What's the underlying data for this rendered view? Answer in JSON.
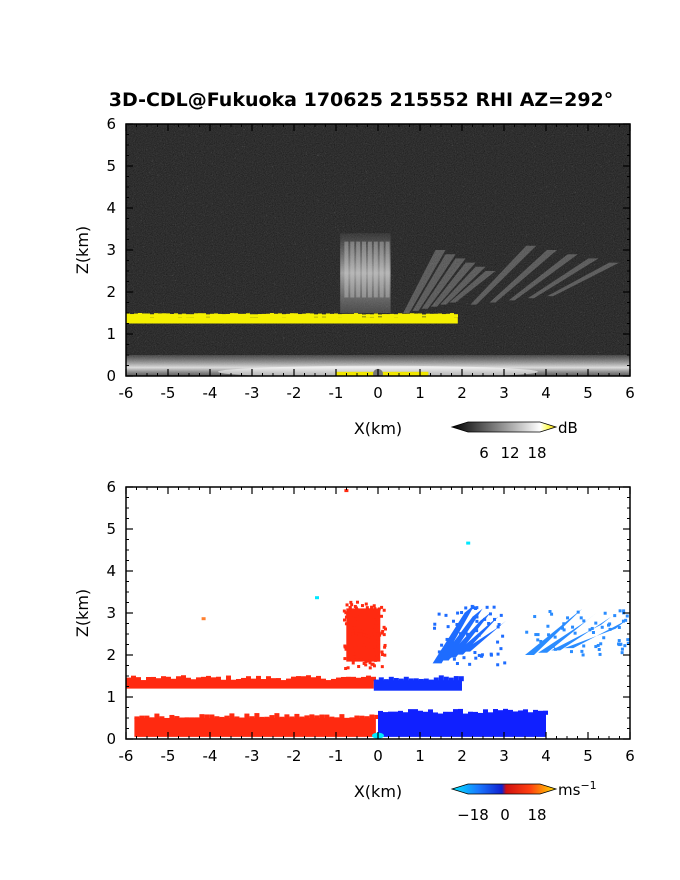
{
  "title": "3D-CDL@Fukuoka 170625 215552 RHI AZ=292°",
  "chart_data": [
    {
      "type": "heatmap",
      "panel": "reflectivity",
      "title": "3D-CDL@Fukuoka 170625 215552 RHI AZ=292°",
      "xlabel": "X(km)",
      "ylabel": "Z(km)",
      "xlim": [
        -6,
        6
      ],
      "ylim": [
        0,
        6
      ],
      "xticks": [
        "-6",
        "-5",
        "-4",
        "-3",
        "-2",
        "-1",
        "0",
        "1",
        "2",
        "3",
        "4",
        "5",
        "6"
      ],
      "yticks": [
        "0",
        "1",
        "2",
        "3",
        "4",
        "5",
        "6"
      ],
      "colorbar": {
        "unit": "dB",
        "ticks": [
          "6",
          "12",
          "18"
        ],
        "range": [
          0,
          21
        ]
      },
      "features": {
        "background_level": "dark gray noise",
        "yellow_layer": {
          "x": [
            -6,
            1.9
          ],
          "z": [
            1.2,
            1.45
          ],
          "color": "#f5f000"
        },
        "bright_surface_layer": {
          "x": [
            -6,
            6
          ],
          "z": [
            0,
            0.5
          ]
        },
        "plume_over_origin": {
          "x": [
            -0.9,
            0.3
          ],
          "z": [
            1.5,
            3.4
          ]
        },
        "streaks_right": [
          {
            "x": [
              0.6,
              2.8
            ],
            "z": [
              1.5,
              3.0
            ]
          },
          {
            "x": [
              2.2,
              6.0
            ],
            "z": [
              1.7,
              3.1
            ]
          }
        ]
      }
    },
    {
      "type": "heatmap",
      "panel": "doppler_velocity",
      "xlabel": "X(km)",
      "ylabel": "Z(km)",
      "xlim": [
        -6,
        6
      ],
      "ylim": [
        0,
        6
      ],
      "xticks": [
        "-6",
        "-5",
        "-4",
        "-3",
        "-2",
        "-1",
        "0",
        "1",
        "2",
        "3",
        "4",
        "5",
        "6"
      ],
      "yticks": [
        "0",
        "1",
        "2",
        "3",
        "4",
        "5",
        "6"
      ],
      "colorbar": {
        "unit": "ms",
        "unit_exponent": "−1",
        "ticks": [
          "−18",
          "0",
          "18"
        ],
        "range": [
          -21,
          21
        ]
      },
      "regions": [
        {
          "sign": "positive",
          "color": "#ff2a10",
          "x": [
            -6,
            -0.1
          ],
          "z": [
            1.2,
            1.4
          ],
          "desc": "receding layer"
        },
        {
          "sign": "negative",
          "color": "#1030ff",
          "x": [
            -0.1,
            2.0
          ],
          "z": [
            1.15,
            1.4
          ],
          "desc": "approaching layer"
        },
        {
          "sign": "positive",
          "color": "#ff2a10",
          "x": [
            -5.8,
            -0.05
          ],
          "z": [
            0.05,
            0.5
          ],
          "desc": "surface receding"
        },
        {
          "sign": "negative",
          "color": "#1020ff",
          "x": [
            0,
            4.0
          ],
          "z": [
            0.05,
            0.6
          ],
          "desc": "surface approaching"
        },
        {
          "sign": "positive",
          "color": "#ff2a10",
          "x": [
            -0.85,
            0.15
          ],
          "z": [
            1.7,
            3.3
          ],
          "desc": "plume"
        },
        {
          "sign": "negative",
          "color": "#1e6cff",
          "x": [
            1.3,
            3.0
          ],
          "z": [
            1.8,
            3.2
          ],
          "desc": "streaks"
        },
        {
          "sign": "negative",
          "color": "#2a8cff",
          "x": [
            3.5,
            6.0
          ],
          "z": [
            2.0,
            3.1
          ],
          "desc": "far streak"
        }
      ]
    }
  ]
}
